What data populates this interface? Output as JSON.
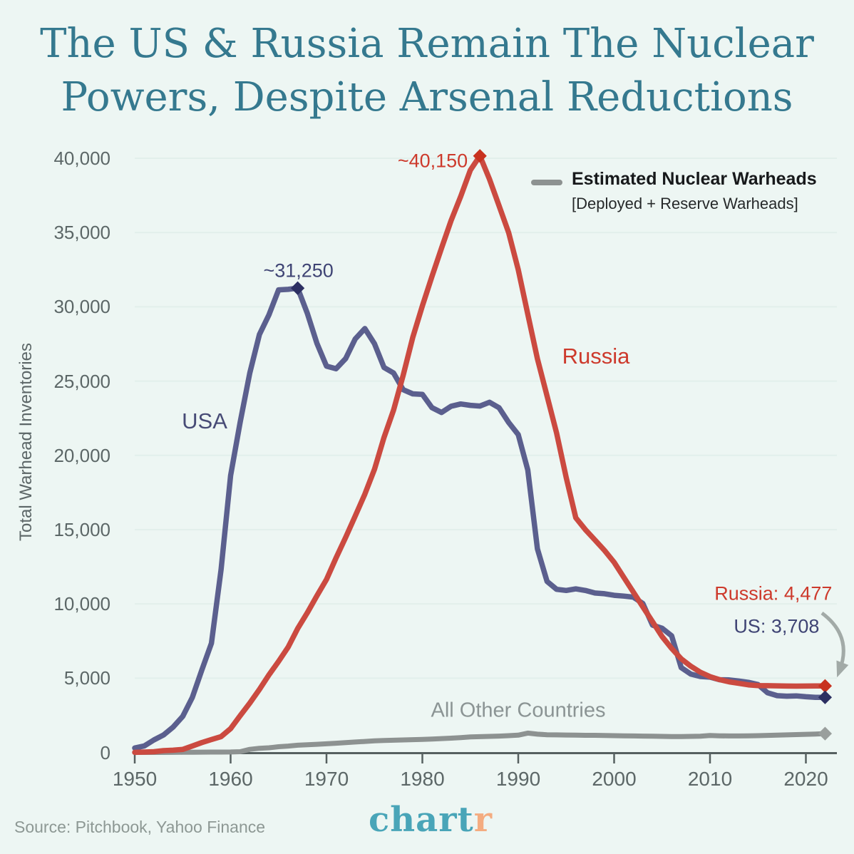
{
  "title": {
    "line1": "The US & Russia Remain The Nuclear",
    "line2": "Powers, Despite Arsenal Reductions"
  },
  "legend": {
    "label": "Estimated Nuclear Warheads",
    "sublabel": "[Deployed + Reserve Warheads]",
    "swatch": "gray-line-swatch"
  },
  "y_axis": {
    "title": "Total Warhead Inventories",
    "tick_values": [
      0,
      5000,
      10000,
      15000,
      20000,
      25000,
      30000,
      35000,
      40000
    ],
    "tick_labels": [
      "0",
      "5,000",
      "10,000",
      "15,000",
      "20,000",
      "25,000",
      "30,000",
      "35,000",
      "40,000"
    ]
  },
  "x_axis": {
    "tick_values": [
      1950,
      1960,
      1970,
      1980,
      1990,
      2000,
      2010,
      2020
    ],
    "tick_labels": [
      "1950",
      "1960",
      "1970",
      "1980",
      "1990",
      "2000",
      "2010",
      "2020"
    ]
  },
  "annotations": {
    "usa_peak": {
      "text": "~31,250",
      "year": 1967,
      "value": 31255
    },
    "russia_peak": {
      "text": "~40,150",
      "year": 1986,
      "value": 40159
    },
    "russia_end": {
      "text": "Russia: 4,477",
      "year": 2022,
      "value": 4477
    },
    "us_end": {
      "text": "US: 3,708",
      "year": 2022,
      "value": 3708
    },
    "usa_label": "USA",
    "russia_label": "Russia",
    "others_label": "All Other Countries"
  },
  "markers": [
    {
      "name": "usa-peak-marker",
      "year": 1967,
      "value": 31255,
      "color": "#2c2f62"
    },
    {
      "name": "russia-peak-marker",
      "year": 1986,
      "value": 40159,
      "color": "#c8321f"
    },
    {
      "name": "russia-end-marker",
      "year": 2022,
      "value": 4477,
      "color": "#c8321f"
    },
    {
      "name": "us-end-marker",
      "year": 2022,
      "value": 3708,
      "color": "#2c2f62"
    },
    {
      "name": "others-end-marker",
      "year": 2022,
      "value": 1265,
      "color": "#9a9f9d"
    }
  ],
  "footer": {
    "source": "Source: Pitchbook, Yahoo Finance",
    "logo_main": "chart",
    "logo_accent": "r"
  },
  "colors": {
    "background": "#edf6f3",
    "title": "#35798f",
    "usa_line": "#5b5f8e",
    "usa_text": "#3f4474",
    "russia_line": "#cb4a40",
    "russia_text": "#cd3a2c",
    "gray_line": "#8d9291",
    "axis_text": "#5c6767",
    "grid": "#e2efeb",
    "axis_line": "#566060",
    "legend_text": "#17191b",
    "source_text": "#8d9894",
    "logo_teal": "#49a5b8",
    "logo_orange": "#f4ac80",
    "arrow": "#a2aaa7"
  },
  "chart_data": {
    "type": "line",
    "title": "The US & Russia Remain The Nuclear Powers, Despite Arsenal Reductions",
    "xlabel": "",
    "ylabel": "Total Warhead Inventories",
    "xlim": [
      1950,
      2022
    ],
    "ylim": [
      0,
      40000
    ],
    "grid": "horizontal",
    "legend_position": "top-right",
    "years": [
      1950,
      1951,
      1952,
      1953,
      1954,
      1955,
      1956,
      1957,
      1958,
      1959,
      1960,
      1961,
      1962,
      1963,
      1964,
      1965,
      1966,
      1967,
      1968,
      1969,
      1970,
      1971,
      1972,
      1973,
      1974,
      1975,
      1976,
      1977,
      1978,
      1979,
      1980,
      1981,
      1982,
      1983,
      1984,
      1985,
      1986,
      1987,
      1988,
      1989,
      1990,
      1991,
      1992,
      1993,
      1994,
      1995,
      1996,
      1997,
      1998,
      1999,
      2000,
      2001,
      2002,
      2003,
      2004,
      2005,
      2006,
      2007,
      2008,
      2009,
      2010,
      2011,
      2012,
      2013,
      2014,
      2015,
      2016,
      2017,
      2018,
      2019,
      2020,
      2021,
      2022
    ],
    "series": [
      {
        "name": "USA",
        "color": "#5b5f8e",
        "values": [
          299,
          438,
          841,
          1169,
          1703,
          2422,
          3692,
          5543,
          7345,
          12298,
          18638,
          22229,
          25540,
          28133,
          29463,
          31139,
          31175,
          31255,
          29561,
          27552,
          26008,
          25830,
          26516,
          27835,
          28537,
          27519,
          25914,
          25542,
          24418,
          24138,
          24104,
          23208,
          22886,
          23305,
          23459,
          23368,
          23317,
          23575,
          23205,
          22217,
          21392,
          19008,
          13708,
          11511,
          10979,
          10904,
          11011,
          10903,
          10732,
          10685,
          10577,
          10526,
          10457,
          10027,
          8570,
          8360,
          7853,
          5709,
          5273,
          5113,
          5066,
          4897,
          4881,
          4804,
          4717,
          4571,
          4018,
          3822,
          3785,
          3805,
          3750,
          3708,
          3708
        ]
      },
      {
        "name": "Russia",
        "color": "#cb4a40",
        "values": [
          5,
          25,
          50,
          120,
          150,
          200,
          426,
          660,
          869,
          1060,
          1605,
          2471,
          3322,
          4238,
          5221,
          6129,
          7089,
          8339,
          9399,
          10538,
          11643,
          13092,
          14478,
          15915,
          17385,
          19055,
          21205,
          23044,
          25393,
          27935,
          30062,
          32049,
          33952,
          35804,
          37431,
          39197,
          40159,
          38600,
          36800,
          35000,
          32500,
          29500,
          26500,
          24000,
          21500,
          18500,
          15800,
          15000,
          14300,
          13600,
          12800,
          11800,
          10800,
          9800,
          8800,
          7800,
          7000,
          6300,
          5800,
          5400,
          5100,
          4900,
          4750,
          4650,
          4550,
          4500,
          4490,
          4480,
          4470,
          4465,
          4470,
          4475,
          4477
        ]
      },
      {
        "name": "All Other Countries",
        "color": "#8d9291",
        "values": [
          0,
          0,
          0,
          1,
          5,
          10,
          15,
          20,
          22,
          25,
          30,
          50,
          205,
          280,
          310,
          385,
          425,
          485,
          520,
          545,
          580,
          620,
          660,
          700,
          740,
          780,
          800,
          820,
          840,
          860,
          880,
          900,
          930,
          960,
          1000,
          1040,
          1060,
          1080,
          1100,
          1130,
          1160,
          1300,
          1230,
          1190,
          1180,
          1170,
          1160,
          1150,
          1150,
          1140,
          1130,
          1120,
          1110,
          1100,
          1090,
          1080,
          1070,
          1070,
          1080,
          1090,
          1140,
          1120,
          1110,
          1110,
          1120,
          1130,
          1145,
          1160,
          1180,
          1200,
          1220,
          1240,
          1265
        ]
      }
    ]
  }
}
